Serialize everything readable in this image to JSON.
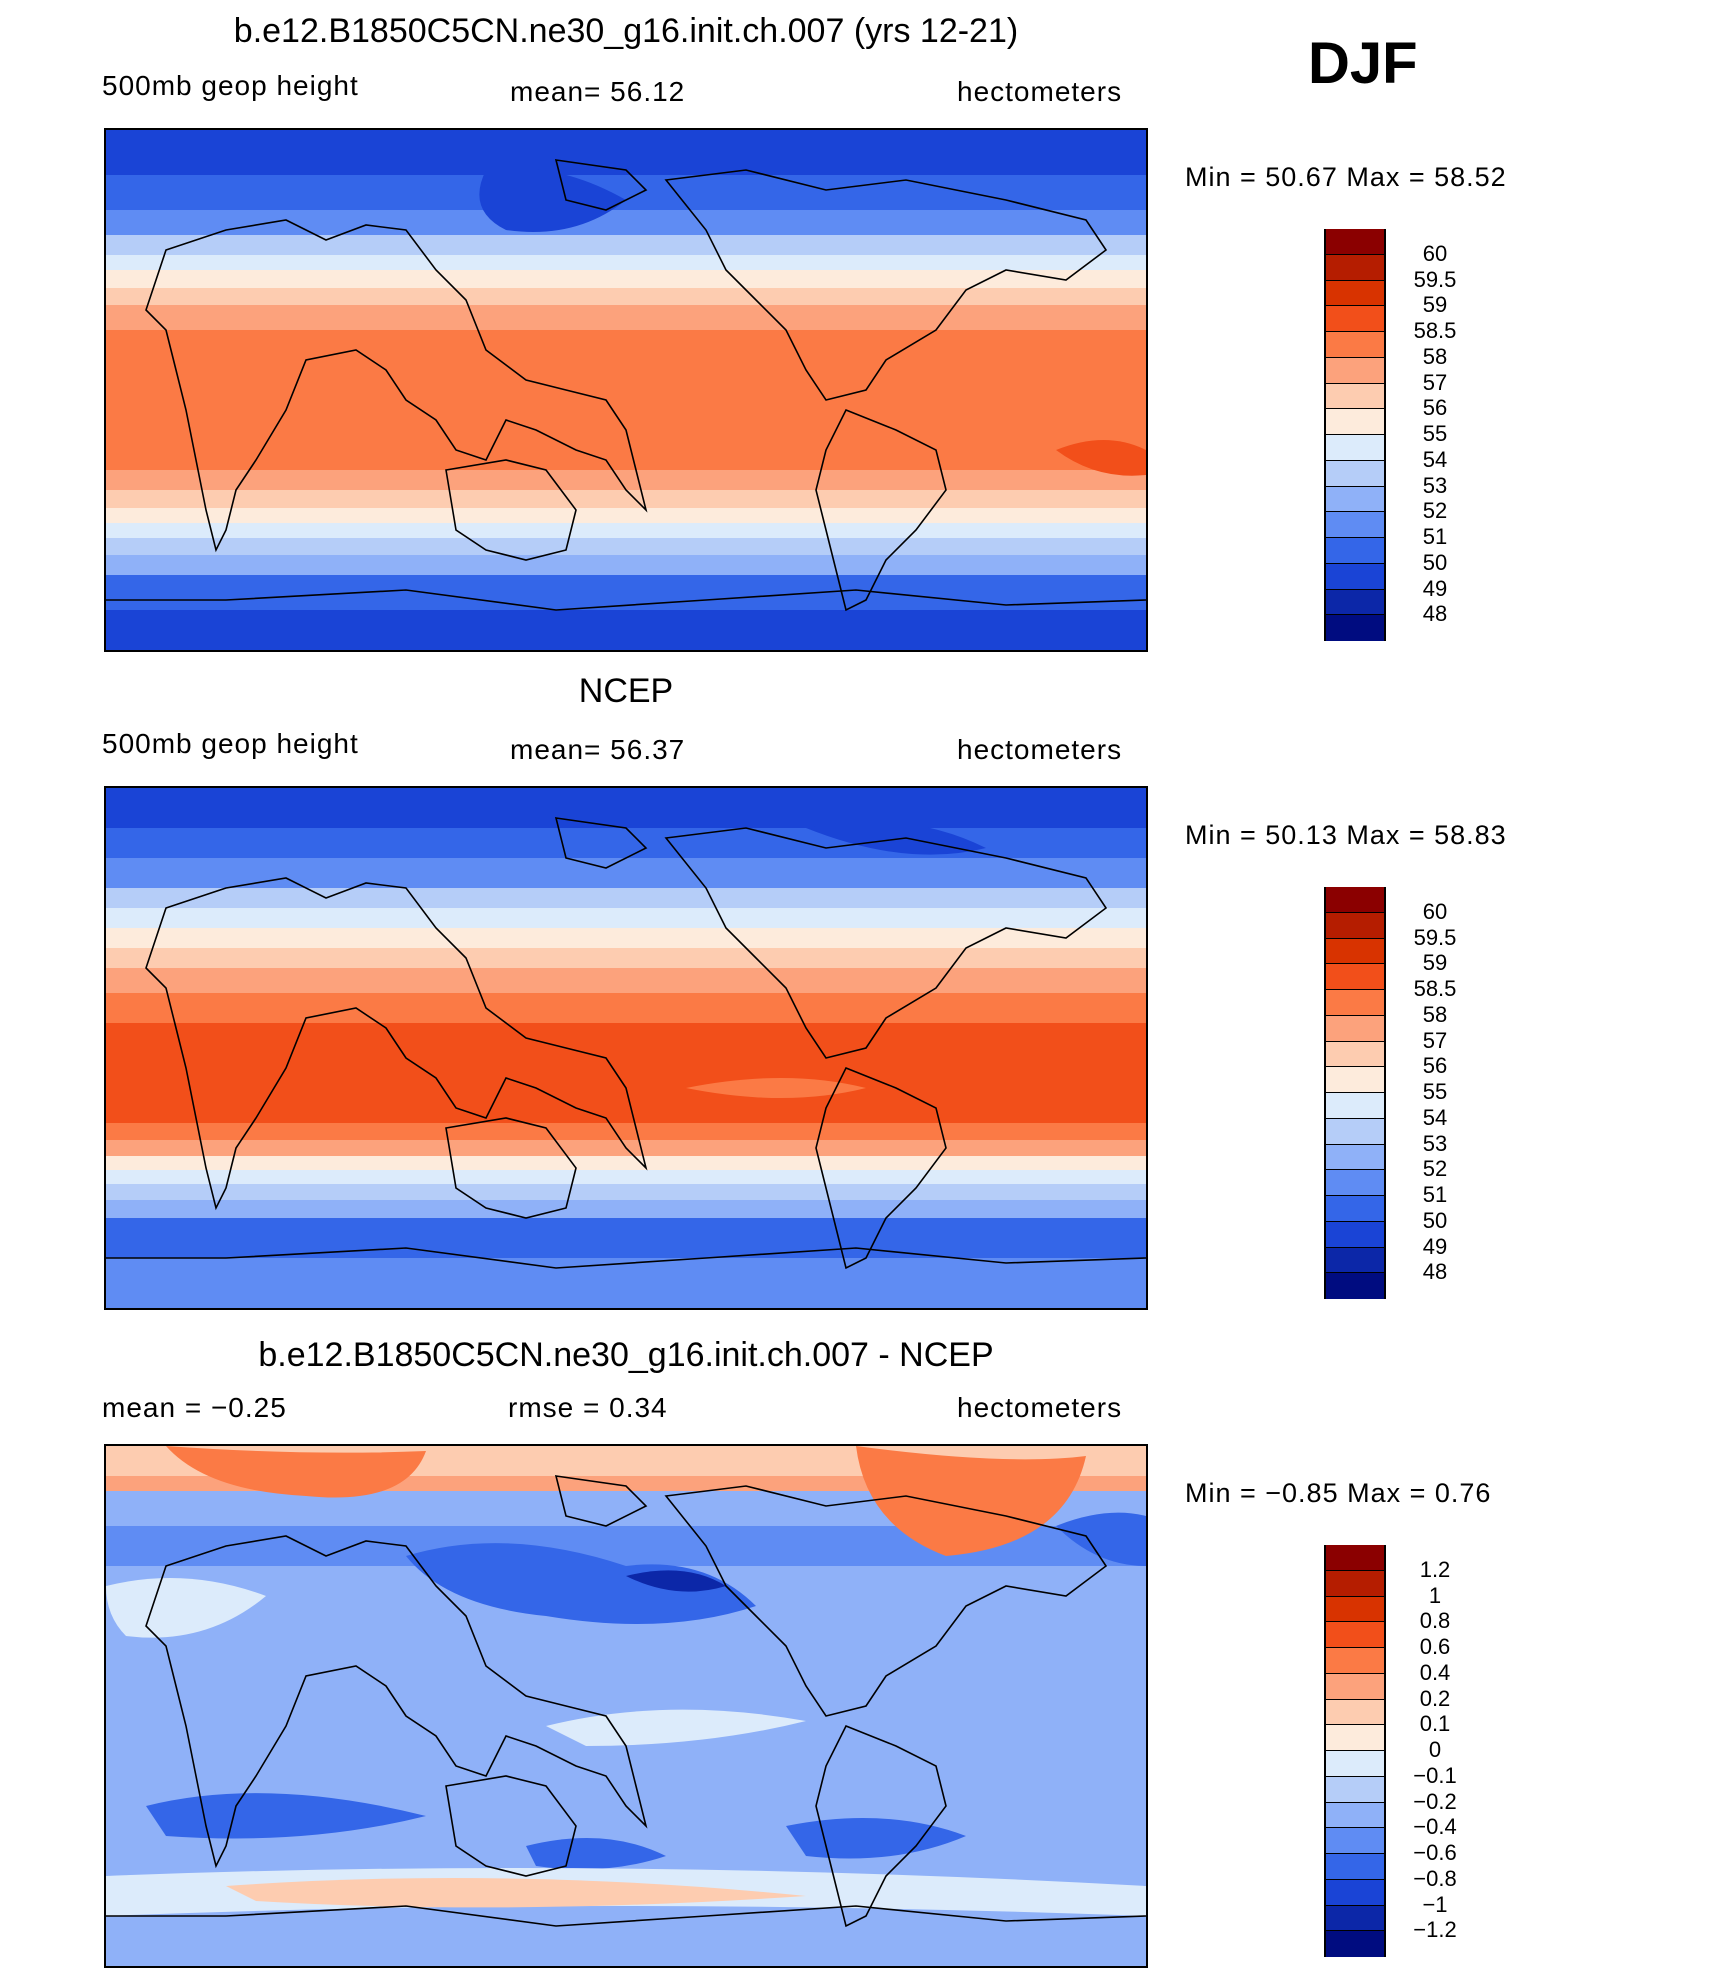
{
  "season": "DJF",
  "panels": [
    {
      "title": "b.e12.B1850C5CN.ne30_g16.init.ch.007 (yrs 12-21)",
      "left": "500mb  geop  height",
      "center": "mean=   56.12",
      "right": "hectometers",
      "minmax": "Min  =     50.67  Max  =     58.52",
      "field": "model"
    },
    {
      "title": "NCEP",
      "left": "500mb  geop  height",
      "center": "mean=   56.37",
      "right": "hectometers",
      "minmax": "Min  =     50.13  Max  =     58.83",
      "field": "obs"
    },
    {
      "title": "b.e12.B1850C5CN.ne30_g16.init.ch.007 - NCEP",
      "left": "mean  =    −0.25",
      "center": "rmse  =     0.34",
      "right": "hectometers",
      "minmax": "Min  =   −0.85  Max  =     0.76",
      "field": "diff"
    }
  ],
  "colorbars": {
    "height": {
      "labels": [
        "60",
        "59.5",
        "59",
        "58.5",
        "58",
        "57",
        "56",
        "55",
        "54",
        "53",
        "52",
        "51",
        "50",
        "49",
        "48"
      ]
    },
    "diff": {
      "labels": [
        "1.2",
        "1",
        "0.8",
        "0.6",
        "0.4",
        "0.2",
        "0.1",
        "0",
        "−0.1",
        "−0.2",
        "−0.4",
        "−0.6",
        "−0.8",
        "−1",
        "−1.2"
      ]
    }
  },
  "palette": [
    "#8b0000",
    "#b51d00",
    "#d83300",
    "#f24f1a",
    "#fb7a45",
    "#fca27c",
    "#fdccb0",
    "#fdebdc",
    "#dcebfb",
    "#b5cdf8",
    "#8fb1f8",
    "#5f8cf3",
    "#3466e8",
    "#1a44d6",
    "#0c27a8",
    "#000c80"
  ],
  "chart_data": [
    {
      "type": "heatmap",
      "title": "b.e12.B1850C5CN.ne30_g16.init.ch.007 (yrs 12-21)",
      "variable": "500mb geop height",
      "units": "hectometers",
      "mean": 56.12,
      "min": 50.67,
      "max": 58.52,
      "levels": [
        48,
        49,
        50,
        51,
        52,
        53,
        54,
        55,
        56,
        57,
        58,
        58.5,
        59,
        59.5,
        60
      ]
    },
    {
      "type": "heatmap",
      "title": "NCEP",
      "variable": "500mb geop height",
      "units": "hectometers",
      "mean": 56.37,
      "min": 50.13,
      "max": 58.83,
      "levels": [
        48,
        49,
        50,
        51,
        52,
        53,
        54,
        55,
        56,
        57,
        58,
        58.5,
        59,
        59.5,
        60
      ]
    },
    {
      "type": "heatmap",
      "title": "b.e12.B1850C5CN.ne30_g16.init.ch.007 - NCEP",
      "units": "hectometers",
      "mean": -0.25,
      "rmse": 0.34,
      "min": -0.85,
      "max": 0.76,
      "levels": [
        -1.2,
        -1,
        -0.8,
        -0.6,
        -0.4,
        -0.2,
        -0.1,
        0,
        0.1,
        0.2,
        0.4,
        0.6,
        0.8,
        1,
        1.2
      ]
    }
  ]
}
